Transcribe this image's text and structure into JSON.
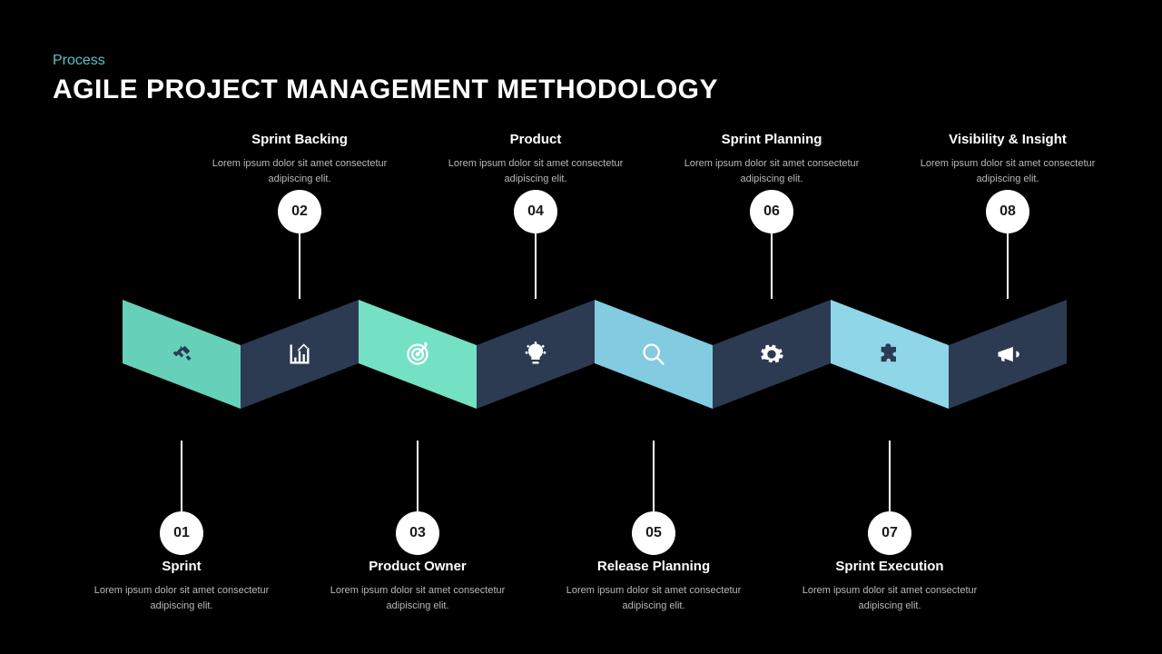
{
  "header": {
    "subtitle": "Process",
    "subtitle_color": "#5bc4c8",
    "title": "AGILE PROJECT MANAGEMENT METHODOLOGY"
  },
  "colors": {
    "background": "#000000",
    "title_text": "#ffffff",
    "desc_text": "#b8b8b8",
    "circle_fill": "#ffffff",
    "circle_text": "#1a1a1a",
    "connector": "#ffffff",
    "light_icon": "#ffffff",
    "dark_icon": "#2c3a52"
  },
  "zigzag": {
    "segment_width": 130,
    "depth": 50,
    "thickness": 70,
    "colors_dark": [
      "#2c3a52",
      "#2c3a52",
      "#2c3a52",
      "#2c3a52"
    ],
    "colors_light": [
      "#66d1b8",
      "#74e0c4",
      "#82cbe0",
      "#8ed6e8"
    ]
  },
  "steps": [
    {
      "num": "01",
      "pos": "bottom",
      "title": "Sprint",
      "desc": "Lorem ipsum dolor sit amet consectetur adipiscing elit.",
      "icon": "handshake",
      "icon_color": "#2c3a52"
    },
    {
      "num": "02",
      "pos": "top",
      "title": "Sprint Backing",
      "desc": "Lorem ipsum dolor sit amet consectetur adipiscing elit.",
      "icon": "chart",
      "icon_color": "#ffffff"
    },
    {
      "num": "03",
      "pos": "bottom",
      "title": "Product Owner",
      "desc": "Lorem ipsum dolor sit amet consectetur adipiscing elit.",
      "icon": "target",
      "icon_color": "#ffffff"
    },
    {
      "num": "04",
      "pos": "top",
      "title": "Product",
      "desc": "Lorem ipsum dolor sit amet consectetur adipiscing elit.",
      "icon": "lightbulb",
      "icon_color": "#ffffff"
    },
    {
      "num": "05",
      "pos": "bottom",
      "title": "Release Planning",
      "desc": "Lorem ipsum dolor sit amet consectetur adipiscing elit.",
      "icon": "magnifier",
      "icon_color": "#ffffff"
    },
    {
      "num": "06",
      "pos": "top",
      "title": "Sprint Planning",
      "desc": "Lorem ipsum dolor sit amet consectetur adipiscing elit.",
      "icon": "gear",
      "icon_color": "#ffffff"
    },
    {
      "num": "07",
      "pos": "bottom",
      "title": "Sprint Execution",
      "desc": "Lorem ipsum dolor sit amet consectetur adipiscing elit.",
      "icon": "puzzle",
      "icon_color": "#2c3a52"
    },
    {
      "num": "08",
      "pos": "top",
      "title": "Visibility & Insight",
      "desc": "Lorem ipsum dolor sit amet consectetur adipiscing elit.",
      "icon": "megaphone",
      "icon_color": "#ffffff"
    }
  ]
}
